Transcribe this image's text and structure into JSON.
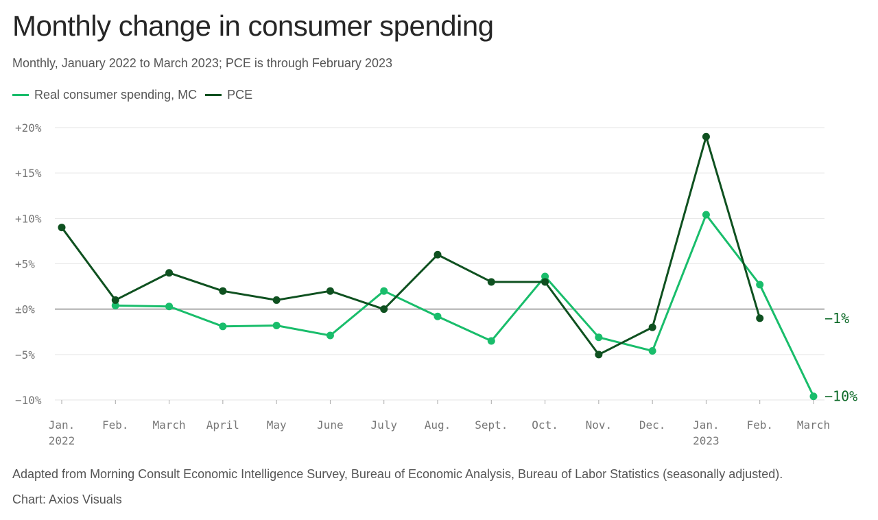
{
  "header": {
    "title": "Monthly change in consumer spending",
    "subtitle": "Monthly, January 2022 to March 2023; PCE is through February 2023"
  },
  "colors": {
    "mc": "#19bd6b",
    "pce": "#0f5120",
    "end_label": "#0f6b2a",
    "grid": "#e6e6e6",
    "zero_line": "#aaaaaa",
    "tick": "#777777"
  },
  "footer": {
    "source": "Adapted from Morning Consult Economic Intelligence Survey, Bureau of Economic Analysis, Bureau of Labor Statistics (seasonally adjusted).",
    "credit": "Chart: Axios Visuals"
  },
  "chart_data": {
    "type": "line",
    "title": "Monthly change in consumer spending",
    "subtitle": "Monthly, January 2022 to March 2023; PCE is through February 2023",
    "categories": [
      "Jan. 2022",
      "Feb.",
      "March",
      "April",
      "May",
      "June",
      "July",
      "Aug.",
      "Sept.",
      "Oct.",
      "Nov.",
      "Dec.",
      "Jan. 2023",
      "Feb.",
      "March"
    ],
    "x_tick_labels": [
      [
        "Jan.",
        "2022"
      ],
      [
        "Feb."
      ],
      [
        "March"
      ],
      [
        "April"
      ],
      [
        "May"
      ],
      [
        "June"
      ],
      [
        "July"
      ],
      [
        "Aug."
      ],
      [
        "Sept."
      ],
      [
        "Oct."
      ],
      [
        "Nov."
      ],
      [
        "Dec."
      ],
      [
        "Jan.",
        "2023"
      ],
      [
        "Feb."
      ],
      [
        "March"
      ]
    ],
    "y_ticks": [
      20,
      15,
      10,
      5,
      0,
      -5,
      -10
    ],
    "y_tick_labels": [
      "+20%",
      "+15%",
      "+10%",
      "+5%",
      "±0%",
      "−5%",
      "−10%"
    ],
    "ylim": [
      -10,
      20
    ],
    "grid": true,
    "legend_position": "top-left",
    "xlabel": "",
    "ylabel": "",
    "series": [
      {
        "name": "Real consumer spending, MC",
        "color": "#19bd6b",
        "values": [
          null,
          0.4,
          0.3,
          -1.9,
          -1.8,
          -2.9,
          2.0,
          -0.8,
          -3.5,
          3.6,
          -3.1,
          -4.6,
          10.4,
          2.7,
          -9.6
        ],
        "end_label": "−10%"
      },
      {
        "name": "PCE",
        "color": "#0f5120",
        "values": [
          9.0,
          1.0,
          4.0,
          2.0,
          1.0,
          2.0,
          0.0,
          6.0,
          3.0,
          3.0,
          -5.0,
          -2.0,
          19.0,
          -1.0,
          null
        ],
        "end_label": "−1%"
      }
    ]
  }
}
